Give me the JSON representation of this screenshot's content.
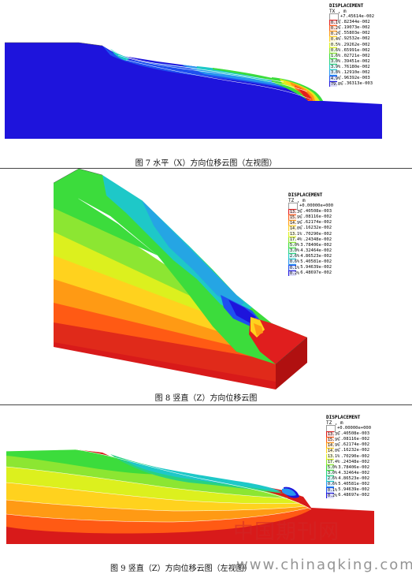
{
  "figures": [
    {
      "caption": "图 7   水平（X）方向位移云图（左视图）",
      "legend": {
        "title": "DISPLACEMENT",
        "sub": "TX , m",
        "rows": [
          {
            "color": "#ffffff",
            "pct": "",
            "value": "+7.45614e-002"
          },
          {
            "color": "#e01e1e",
            "pct": "0.1%",
            "value": "6.82344e-002"
          },
          {
            "color": "#ff5a14",
            "pct": "0.2%",
            "value": "6.19073e-002"
          },
          {
            "color": "#ff9a14",
            "pct": "0.2%",
            "value": "5.55803e-002"
          },
          {
            "color": "#ffd21e",
            "pct": "0.4%",
            "value": "4.92532e-002"
          },
          {
            "color": "#dcf01e",
            "pct": "0.5%",
            "value": "4.29262e-002"
          },
          {
            "color": "#8ce632",
            "pct": "0.6%",
            "value": "3.65991e-002"
          },
          {
            "color": "#3cdc3c",
            "pct": "1.6%",
            "value": "3.02721e-002"
          },
          {
            "color": "#28d282",
            "pct": "3.0%",
            "value": "2.39451e-002"
          },
          {
            "color": "#1ec8c8",
            "pct": "3.9%",
            "value": "1.76180e-002"
          },
          {
            "color": "#2896f0",
            "pct": "3.8%",
            "value": "1.12910e-002"
          },
          {
            "color": "#1e50f0",
            "pct": "4.9%",
            "value": "4.96392e-003"
          },
          {
            "color": "#1e14dc",
            "pct": "79.8%",
            "value": "-1.36313e-003"
          }
        ]
      }
    },
    {
      "caption": "图 8   竖直（Z）方向位移云图",
      "legend": {
        "title": "DISPLACEMENT",
        "sub": "TZ , m",
        "rows": [
          {
            "color": "#ffffff",
            "pct": "",
            "value": "+0.00000e+000"
          },
          {
            "color": "#e01e1e",
            "pct": "13.3%",
            "value": "-5.40508e-003"
          },
          {
            "color": "#ff5a14",
            "pct": "15.9%",
            "value": "-1.08116e-002"
          },
          {
            "color": "#ff9a14",
            "pct": "14.9%",
            "value": "-1.62174e-002"
          },
          {
            "color": "#ffd21e",
            "pct": "14.0%",
            "value": "-2.16232e-002"
          },
          {
            "color": "#dcf01e",
            "pct": "13.1%",
            "value": "-2.70290e-002"
          },
          {
            "color": "#8ce632",
            "pct": "17.4%",
            "value": "-3.24348e-002"
          },
          {
            "color": "#3cdc3c",
            "pct": "5.0%",
            "value": "-3.78406e-002"
          },
          {
            "color": "#28d282",
            "pct": "3.0%",
            "value": "-4.32464e-002"
          },
          {
            "color": "#1ec8c8",
            "pct": "2.6%",
            "value": "-4.86523e-002"
          },
          {
            "color": "#2896f0",
            "pct": "0.6%",
            "value": "-5.40581e-002"
          },
          {
            "color": "#1e50f0",
            "pct": "0.1%",
            "value": "-5.94639e-002"
          },
          {
            "color": "#1e14dc",
            "pct": "0.2%",
            "value": "-6.48697e-002"
          }
        ]
      }
    },
    {
      "caption": "图 9   竖直（Z）方向位移云图（左视图）",
      "legend": {
        "title": "DISPLACEMENT",
        "sub": "TZ , m",
        "rows": [
          {
            "color": "#ffffff",
            "pct": "",
            "value": "+0.00000e+000"
          },
          {
            "color": "#e01e1e",
            "pct": "13.3%",
            "value": "-5.40508e-003"
          },
          {
            "color": "#ff5a14",
            "pct": "15.9%",
            "value": "-1.08116e-002"
          },
          {
            "color": "#ff9a14",
            "pct": "14.9%",
            "value": "-1.62174e-002"
          },
          {
            "color": "#ffd21e",
            "pct": "14.0%",
            "value": "-2.16232e-002"
          },
          {
            "color": "#dcf01e",
            "pct": "13.1%",
            "value": "-2.70290e-002"
          },
          {
            "color": "#8ce632",
            "pct": "17.4%",
            "value": "-3.24348e-002"
          },
          {
            "color": "#3cdc3c",
            "pct": "5.0%",
            "value": "-3.78406e-002"
          },
          {
            "color": "#28d282",
            "pct": "3.0%",
            "value": "-4.32464e-002"
          },
          {
            "color": "#1ec8c8",
            "pct": "2.6%",
            "value": "-4.86523e-002"
          },
          {
            "color": "#2896f0",
            "pct": "0.6%",
            "value": "-5.40581e-002"
          },
          {
            "color": "#1e50f0",
            "pct": "0.1%",
            "value": "-5.94639e-002"
          },
          {
            "color": "#1e14dc",
            "pct": "0.2%",
            "value": "-6.48697e-002"
          }
        ]
      }
    }
  ],
  "watermark": {
    "logo_text": "中国期刊网",
    "url": "www.chinaqking.com"
  }
}
